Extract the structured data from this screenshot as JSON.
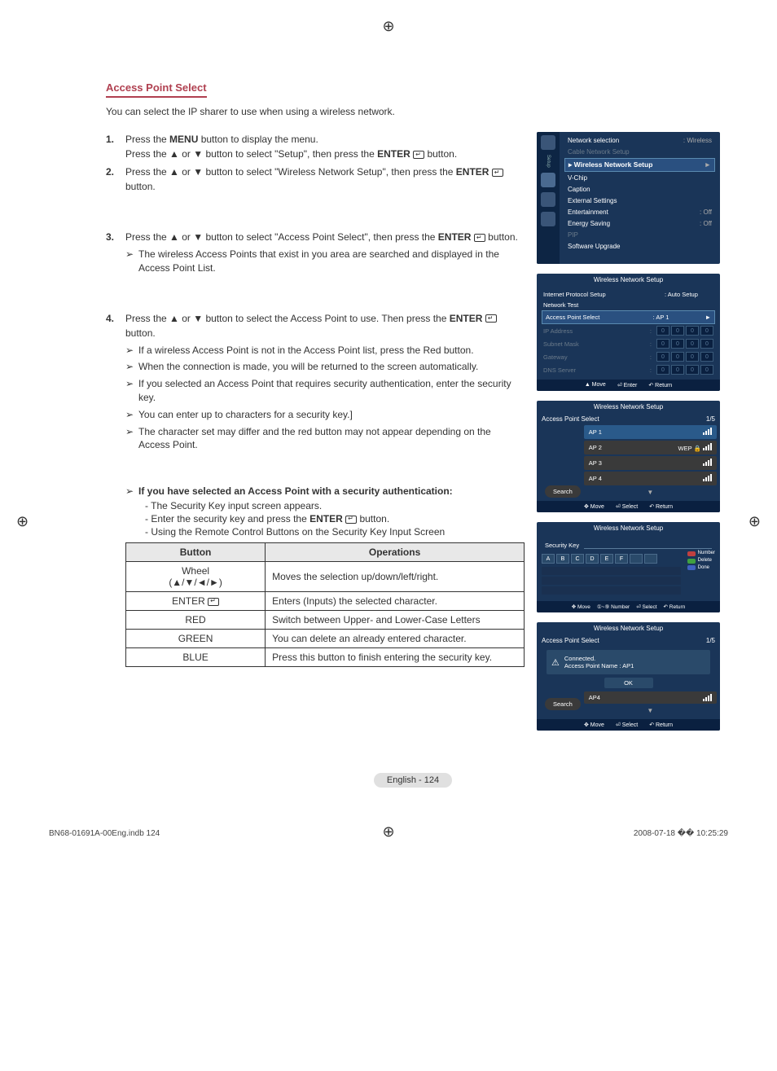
{
  "section_title": "Access Point Select",
  "intro": "You can select the IP sharer to use when using a wireless network.",
  "steps": [
    {
      "n": "1.",
      "html": "Press the <b>MENU</b> button to display the menu.<br>Press the ▲ or ▼ button to select \"Setup\", then press the <b>ENTER</b> <span class='enter-icon'></span> button."
    },
    {
      "n": "2.",
      "html": "Press the ▲ or ▼ button to select \"Wireless Network Setup\", then press the <b>ENTER</b> <span class='enter-icon'></span> button."
    }
  ],
  "step3": {
    "n": "3.",
    "html": "Press the ▲ or ▼ button to select \"Access Point Select\", then press the <b>ENTER</b> <span class='enter-icon'></span> button."
  },
  "step3_bullets": [
    "The wireless Access Points that exist in you area are searched and displayed in the Access Point List."
  ],
  "step4": {
    "n": "4.",
    "html": "Press the ▲ or ▼ button to select the Access Point to use. Then press the <b>ENTER</b> <span class='enter-icon'></span> button."
  },
  "step4_bullets": [
    "If a wireless Access Point is not in the Access Point list, press the Red button.",
    "When the connection is made, you will be returned to the screen automatically.",
    "If you selected an Access Point that requires security authentication, enter the security key.",
    "You can enter up to characters for a security key.]",
    "The character set may differ and the red button may not appear depending on the Access Point."
  ],
  "note_head": "If you have selected an Access Point with a security authentication:",
  "note_subs": [
    "- The Security Key input screen appears.",
    "- Enter the security key and press the <b>ENTER</b> <span class='enter-icon'></span> button.",
    "- Using the Remote Control Buttons on the Security Key Input Screen"
  ],
  "table": {
    "col1": "Button",
    "col2": "Operations",
    "rows": [
      {
        "b": "Wheel<br>(▲/▼/◄/►)",
        "o": "Moves the selection up/down/left/right."
      },
      {
        "b": "ENTER <span class='enter-icon'></span>",
        "o": "Enters (Inputs) the selected character."
      },
      {
        "b": "RED",
        "o": "Switch between Upper- and Lower-Case Letters"
      },
      {
        "b": "GREEN",
        "o": "You can delete an already entered character."
      },
      {
        "b": "BLUE",
        "o": "Press this button to finish entering the security key."
      }
    ]
  },
  "menu1": {
    "side_label": "Setup",
    "rows": [
      {
        "l": "Network selection",
        "v": ": Wireless",
        "dim": false
      },
      {
        "l": "Cable Network Setup",
        "v": "",
        "dim": true
      },
      {
        "l": "Wireless Network Setup",
        "v": "►",
        "sel": true
      },
      {
        "l": "V-Chip",
        "v": "",
        "dim": false
      },
      {
        "l": "Caption",
        "v": "",
        "dim": false
      },
      {
        "l": "External Settings",
        "v": "",
        "dim": false
      },
      {
        "l": "Entertainment",
        "v": ": Off",
        "dim": false
      },
      {
        "l": "Energy Saving",
        "v": ": Off",
        "dim": false
      },
      {
        "l": "PIP",
        "v": "",
        "dim": true
      },
      {
        "l": "Software Upgrade",
        "v": "",
        "dim": false
      }
    ]
  },
  "menu2": {
    "title": "Wireless Network Setup",
    "rows": [
      {
        "l": "Internet Protocol Setup",
        "v": ": Auto Setup"
      },
      {
        "l": "Network Test",
        "v": ""
      },
      {
        "l": "Access Point Select",
        "v": ": AP 1",
        "sel": true,
        "arrow": "►"
      },
      {
        "l": "IP Address",
        "ip": [
          "0",
          "0",
          "0",
          "0"
        ],
        "dim": true
      },
      {
        "l": "Subnet Mask",
        "ip": [
          "0",
          "0",
          "0",
          "0"
        ],
        "dim": true
      },
      {
        "l": "Gateway",
        "ip": [
          "0",
          "0",
          "0",
          "0"
        ],
        "dim": true
      },
      {
        "l": "DNS Server",
        "ip": [
          "0",
          "0",
          "0",
          "0"
        ],
        "dim": true
      }
    ],
    "foot": [
      "▲ Move",
      "⏎ Enter",
      "↶ Return"
    ]
  },
  "menu3": {
    "title": "Wireless Network Setup",
    "head_l": "Access Point Select",
    "head_r": "1/5",
    "aps": [
      {
        "n": "AP 1",
        "sel": true,
        "wep": ""
      },
      {
        "n": "AP 2",
        "wep": "WEP 🔒"
      },
      {
        "n": "AP 3",
        "wep": ""
      },
      {
        "n": "AP 4",
        "wep": ""
      }
    ],
    "search": "Search",
    "foot": [
      "✥ Move",
      "⏎ Select",
      "↶ Return"
    ]
  },
  "menu4": {
    "title": "Wireless Network Setup",
    "label": "Security Key",
    "chars": [
      "A",
      "B",
      "C",
      "D",
      "E",
      "F"
    ],
    "legend": [
      {
        "c": "dot-red",
        "t": "Number"
      },
      {
        "c": "dot-grn",
        "t": "Delete"
      },
      {
        "c": "dot-blu",
        "t": "Done"
      }
    ],
    "foot": [
      "✥ Move",
      "①~⑨ Number",
      "⏎ Select",
      "↶ Return"
    ]
  },
  "menu5": {
    "title": "Wireless Network Setup",
    "head_l": "Access Point Select",
    "head_r": "1/5",
    "conn_l1": "Connected.",
    "conn_l2": "Access Point Name : AP1",
    "ok": "OK",
    "ap4": "AP4",
    "search": "Search",
    "foot": [
      "✥ Move",
      "⏎ Select",
      "↶ Return"
    ]
  },
  "page_badge": "English - 124",
  "doc_foot_l": "BN68-01691A-00Eng.indb   124",
  "doc_foot_r": "2008-07-18   �� 10:25:29"
}
